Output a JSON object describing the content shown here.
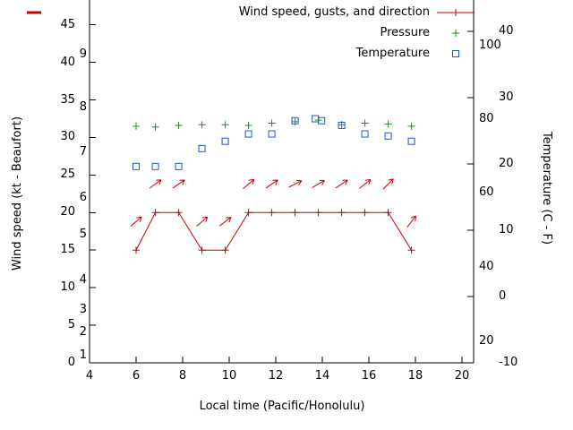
{
  "legend": {
    "wind": "Wind speed, gusts, and direction",
    "pressure": "Pressure",
    "temperature": "Temperature"
  },
  "colors": {
    "wind": "#cc0000",
    "pressure": "#00a000",
    "temperature": "#2255cc",
    "axis": "#000000"
  },
  "chart_data": {
    "type": "line",
    "title": "",
    "xlabel": "Local time (Pacific/Honolulu)",
    "ylabel_left": "Wind speed (kt - Beaufort)",
    "ylabel_right": "Temperature (C - F)",
    "xlim": [
      4,
      20.5
    ],
    "ylim_left": [
      0,
      48.3
    ],
    "ylim_right": [
      -10,
      44.7
    ],
    "x_ticks": [
      4,
      6,
      8,
      10,
      12,
      14,
      16,
      18,
      20
    ],
    "y_ticks_left": [
      0,
      5,
      10,
      15,
      20,
      25,
      30,
      35,
      40,
      45
    ],
    "beaufort_ticks": [
      {
        "label": "1",
        "kt": 1
      },
      {
        "label": "2",
        "kt": 4
      },
      {
        "label": "3",
        "kt": 7
      },
      {
        "label": "4",
        "kt": 11
      },
      {
        "label": "5",
        "kt": 17
      },
      {
        "label": "6",
        "kt": 22
      },
      {
        "label": "7",
        "kt": 28
      },
      {
        "label": "8",
        "kt": 34
      },
      {
        "label": "9",
        "kt": 41
      }
    ],
    "y_ticks_right": [
      -10,
      0,
      10,
      20,
      30,
      40
    ],
    "fahrenheit_ticks": [
      {
        "label": "20",
        "c": -6.7
      },
      {
        "label": "40",
        "c": 4.4
      },
      {
        "label": "60",
        "c": 15.6
      },
      {
        "label": "80",
        "c": 26.7
      },
      {
        "label": "100",
        "c": 37.8
      }
    ],
    "grid": false,
    "legend_position": "top-right",
    "series": [
      {
        "name": "Wind speed",
        "type": "line",
        "marker": "plus",
        "axis": "left",
        "color_key": "wind",
        "x": [
          6,
          6.83,
          7.83,
          8.83,
          9.83,
          10.83,
          11.83,
          12.83,
          13.83,
          14.83,
          15.83,
          16.83,
          17.83
        ],
        "y": [
          15,
          20,
          20,
          15,
          15,
          20,
          20,
          20,
          20,
          20,
          20,
          20,
          15
        ]
      },
      {
        "name": "Wind direction",
        "type": "arrows",
        "axis": "left",
        "color_key": "wind",
        "x": [
          6,
          6.83,
          7.83,
          8.83,
          9.83,
          10.83,
          11.83,
          12.83,
          13.83,
          14.83,
          15.83,
          16.83,
          17.83
        ],
        "y": [
          18.8,
          23.8,
          23.8,
          18.8,
          18.8,
          23.8,
          23.8,
          23.8,
          23.8,
          23.8,
          23.8,
          23.8,
          18.8
        ],
        "angles_deg": [
          40,
          36,
          34,
          40,
          37,
          40,
          34,
          27,
          30,
          34,
          38,
          45,
          52
        ]
      },
      {
        "name": "Pressure",
        "type": "points",
        "marker": "plus",
        "axis": "left",
        "color_key": "pressure",
        "x": [
          6,
          6.83,
          7.83,
          8.83,
          9.83,
          10.83,
          11.83,
          12.83,
          13.83,
          14.83,
          15.83,
          16.83,
          17.83
        ],
        "y": [
          31.5,
          31.4,
          31.6,
          31.7,
          31.7,
          31.6,
          31.9,
          32.1,
          32.3,
          31.7,
          31.9,
          31.8,
          31.5
        ]
      },
      {
        "name": "Temperature",
        "type": "points",
        "marker": "square",
        "axis": "right",
        "color_key": "temperature",
        "x": [
          6,
          6.83,
          7.83,
          8.83,
          9.83,
          10.83,
          11.83,
          12.83,
          13.7,
          13.97,
          14.83,
          15.83,
          16.83,
          17.83
        ],
        "y": [
          19.6,
          19.6,
          19.6,
          22.3,
          23.4,
          24.5,
          24.5,
          26.5,
          26.8,
          26.5,
          25.8,
          24.5,
          24.2,
          23.4
        ]
      }
    ]
  }
}
